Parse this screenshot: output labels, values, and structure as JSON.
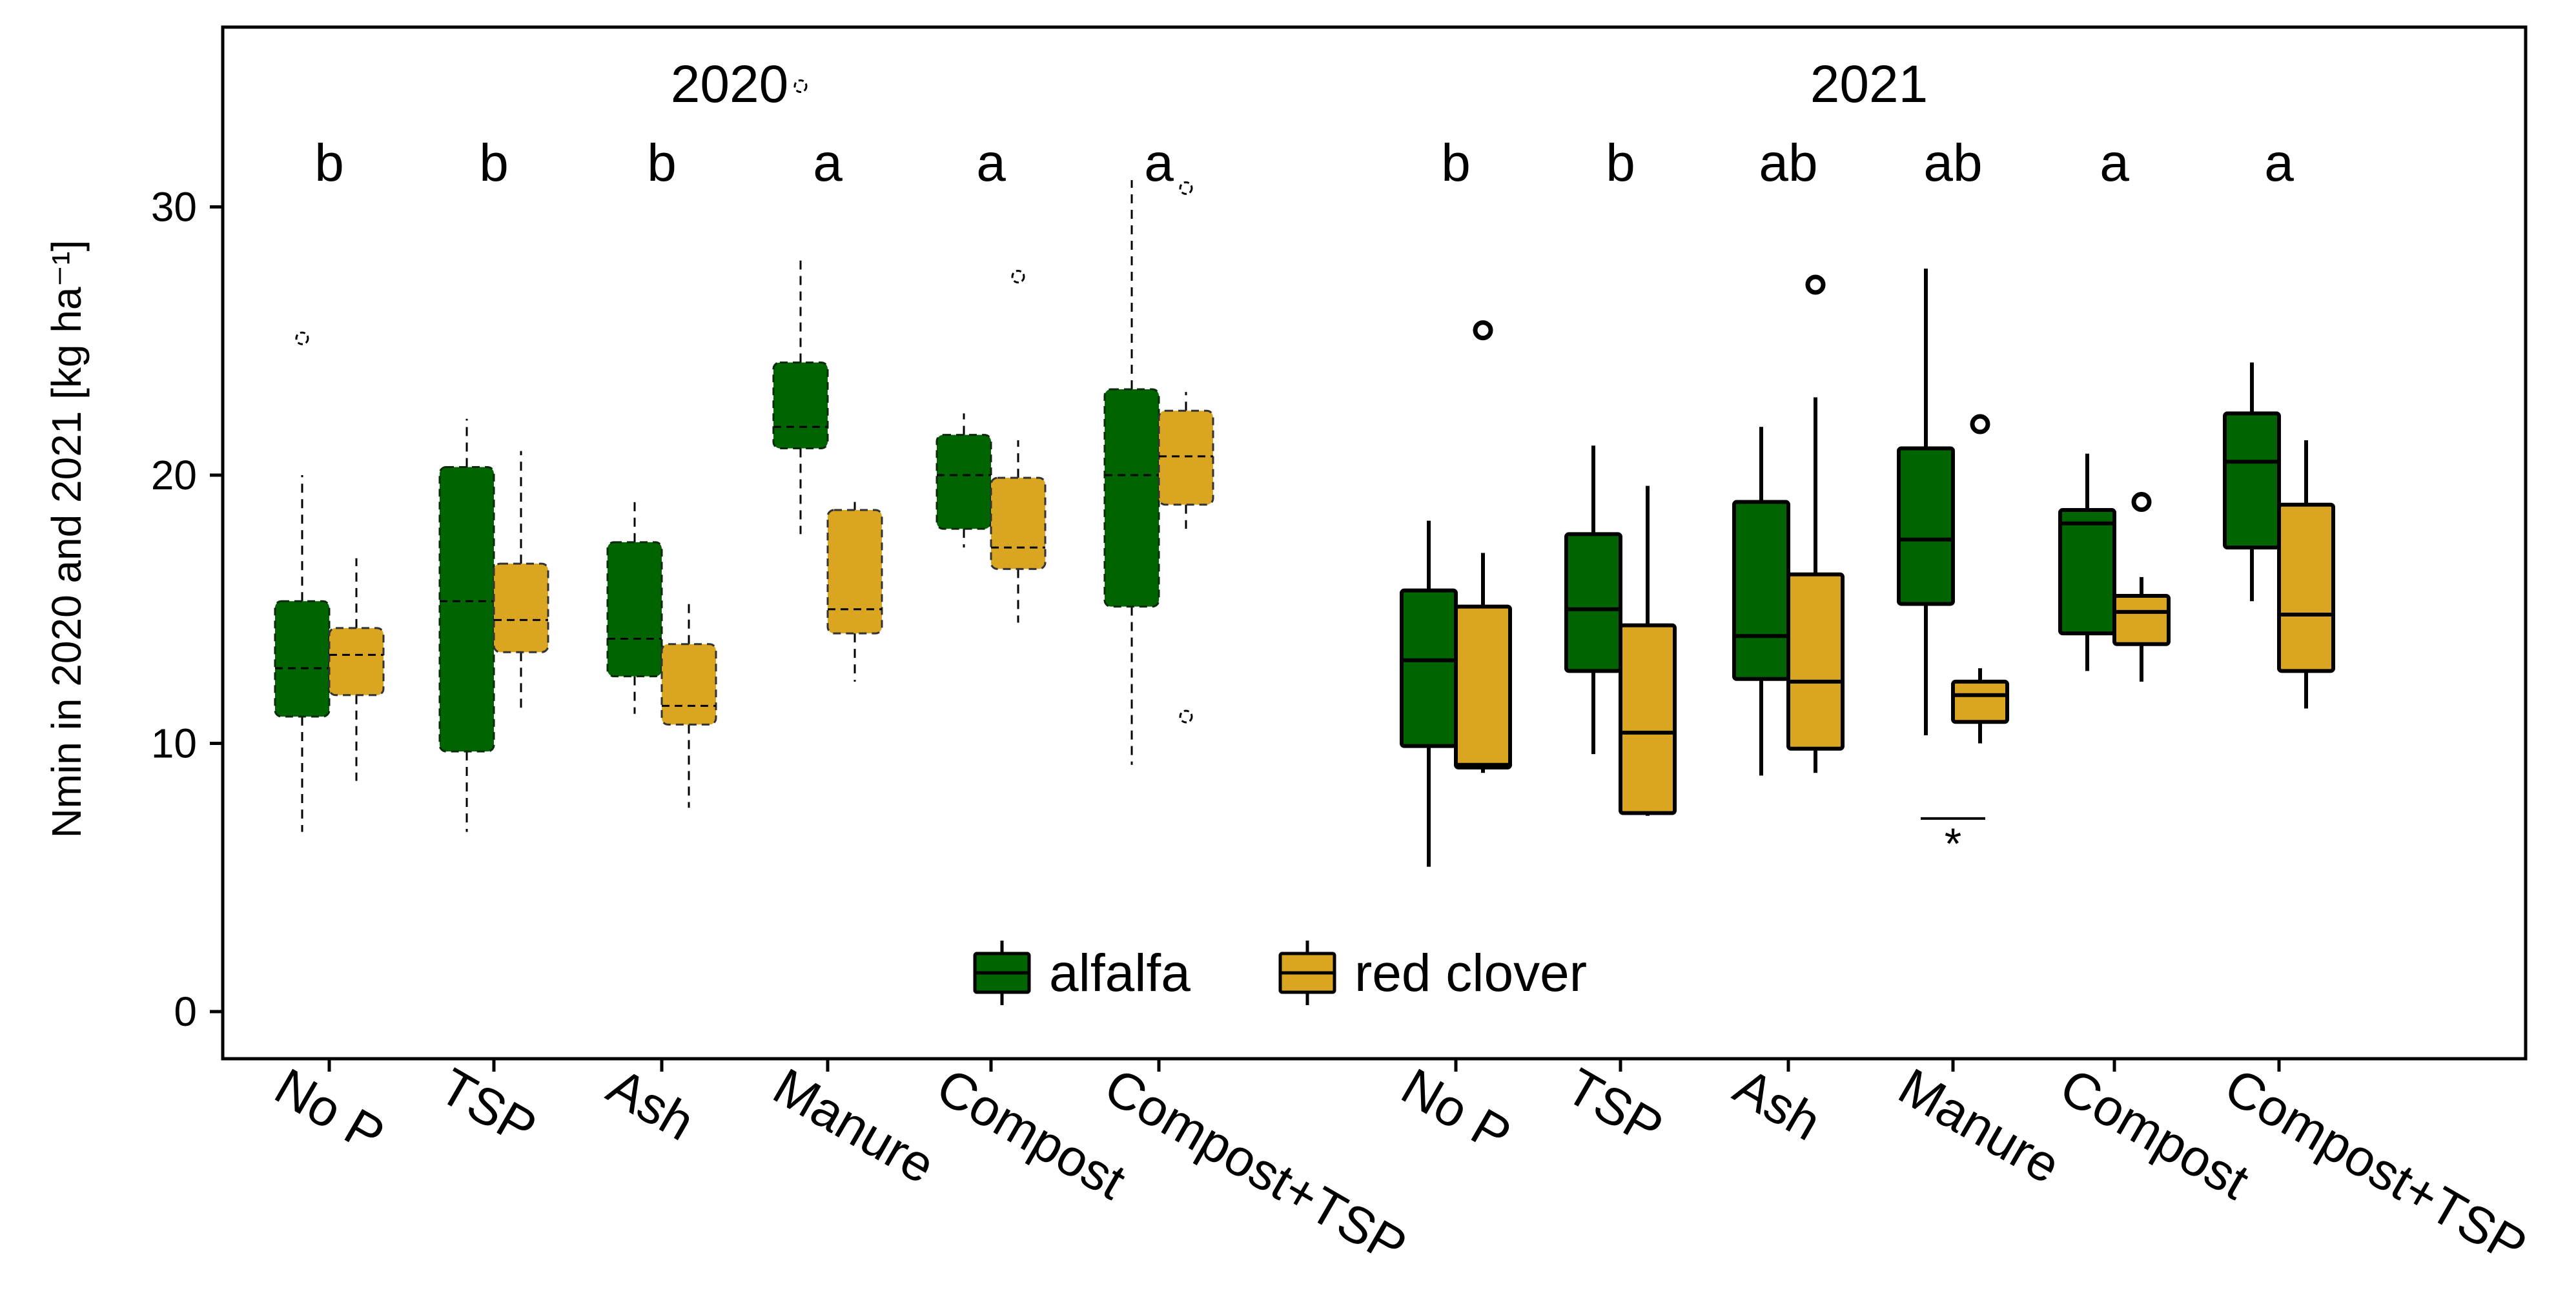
{
  "chart_data": {
    "type": "boxplot",
    "ylabel": "Nmin in 2020 and 2021 [kg ha⁻¹]",
    "ylim": [
      -1.8,
      36.5
    ],
    "yticks": [
      0,
      10,
      20,
      30
    ],
    "grid": false,
    "legend": {
      "position": "bottom-center",
      "entries": [
        {
          "label": "alfalfa",
          "color": "#006400"
        },
        {
          "label": "red clover",
          "color": "#DAA520"
        }
      ]
    },
    "groups": [
      {
        "title": "2020",
        "line_style": "dashed",
        "categories": [
          {
            "label": "No P",
            "letter": "b",
            "alfalfa": {
              "min": 6.7,
              "q1": 11.0,
              "median": 12.8,
              "q3": 15.3,
              "max": 20.0,
              "outliers": [
                25.1
              ]
            },
            "red_clover": {
              "min": 8.6,
              "q1": 11.8,
              "median": 13.3,
              "q3": 14.3,
              "max": 16.9,
              "outliers": []
            }
          },
          {
            "label": "TSP",
            "letter": "b",
            "alfalfa": {
              "min": 6.7,
              "q1": 9.7,
              "median": 15.3,
              "q3": 20.3,
              "max": 22.1,
              "outliers": []
            },
            "red_clover": {
              "min": 11.3,
              "q1": 13.4,
              "median": 14.6,
              "q3": 16.7,
              "max": 20.9,
              "outliers": []
            }
          },
          {
            "label": "Ash",
            "letter": "b",
            "alfalfa": {
              "min": 11.1,
              "q1": 12.5,
              "median": 13.9,
              "q3": 17.5,
              "max": 19.0,
              "outliers": []
            },
            "red_clover": {
              "min": 7.6,
              "q1": 10.7,
              "median": 11.4,
              "q3": 13.7,
              "max": 15.3,
              "outliers": []
            }
          },
          {
            "label": "Manure",
            "letter": "a",
            "alfalfa": {
              "min": 17.8,
              "q1": 21.0,
              "median": 21.8,
              "q3": 24.2,
              "max": 28.0,
              "outliers": [
                34.5
              ]
            },
            "red_clover": {
              "min": 12.3,
              "q1": 14.1,
              "median": 15.0,
              "q3": 18.7,
              "max": 19.0,
              "outliers": []
            }
          },
          {
            "label": "Compost",
            "letter": "a",
            "alfalfa": {
              "min": 17.3,
              "q1": 18.0,
              "median": 20.0,
              "q3": 21.5,
              "max": 22.3,
              "outliers": []
            },
            "red_clover": {
              "min": 14.5,
              "q1": 16.5,
              "median": 17.3,
              "q3": 19.9,
              "max": 21.3,
              "outliers": [
                27.4
              ]
            }
          },
          {
            "label": "Compost+TSP",
            "letter": "a",
            "alfalfa": {
              "min": 9.2,
              "q1": 15.1,
              "median": 20.0,
              "q3": 23.2,
              "max": 31.0,
              "outliers": []
            },
            "red_clover": {
              "min": 18.0,
              "q1": 18.9,
              "median": 20.7,
              "q3": 22.4,
              "max": 23.1,
              "outliers": [
                11.0,
                30.7
              ]
            }
          }
        ]
      },
      {
        "title": "2021",
        "line_style": "solid",
        "categories": [
          {
            "label": "No P",
            "letter": "b",
            "alfalfa": {
              "min": 5.4,
              "q1": 9.9,
              "median": 13.1,
              "q3": 15.7,
              "max": 18.3,
              "outliers": []
            },
            "red_clover": {
              "min": 8.9,
              "q1": 9.1,
              "median": 9.2,
              "q3": 15.1,
              "max": 17.1,
              "outliers": [
                25.4
              ]
            }
          },
          {
            "label": "TSP",
            "letter": "b",
            "alfalfa": {
              "min": 9.6,
              "q1": 12.7,
              "median": 15.0,
              "q3": 17.8,
              "max": 21.1,
              "outliers": []
            },
            "red_clover": {
              "min": 7.3,
              "q1": 7.4,
              "median": 10.4,
              "q3": 14.4,
              "max": 19.6,
              "outliers": []
            }
          },
          {
            "label": "Ash",
            "letter": "ab",
            "alfalfa": {
              "min": 8.8,
              "q1": 12.4,
              "median": 14.0,
              "q3": 19.0,
              "max": 21.8,
              "outliers": []
            },
            "red_clover": {
              "min": 8.9,
              "q1": 9.8,
              "median": 12.3,
              "q3": 16.3,
              "max": 22.9,
              "outliers": [
                27.1
              ]
            }
          },
          {
            "label": "Manure",
            "letter": "ab",
            "alfalfa": {
              "min": 10.3,
              "q1": 15.2,
              "median": 17.6,
              "q3": 21.0,
              "max": 27.7,
              "outliers": []
            },
            "red_clover": {
              "min": 10.0,
              "q1": 10.8,
              "median": 11.8,
              "q3": 12.3,
              "max": 12.8,
              "outliers": [
                21.9
              ]
            }
          },
          {
            "label": "Compost",
            "letter": "a",
            "alfalfa": {
              "min": 12.7,
              "q1": 14.1,
              "median": 18.2,
              "q3": 18.7,
              "max": 20.8,
              "outliers": []
            },
            "red_clover": {
              "min": 12.3,
              "q1": 13.7,
              "median": 14.9,
              "q3": 15.5,
              "max": 16.2,
              "outliers": [
                19.0
              ]
            }
          },
          {
            "label": "Compost+TSP",
            "letter": "a",
            "alfalfa": {
              "min": 15.3,
              "q1": 17.3,
              "median": 20.5,
              "q3": 22.3,
              "max": 24.2,
              "outliers": []
            },
            "red_clover": {
              "min": 11.3,
              "q1": 12.7,
              "median": 14.8,
              "q3": 18.9,
              "max": 21.3,
              "outliers": []
            }
          }
        ]
      }
    ],
    "annotations": [
      {
        "text": "*",
        "group": "2021",
        "category": "Manure",
        "bracket_y": 7.2
      }
    ]
  }
}
